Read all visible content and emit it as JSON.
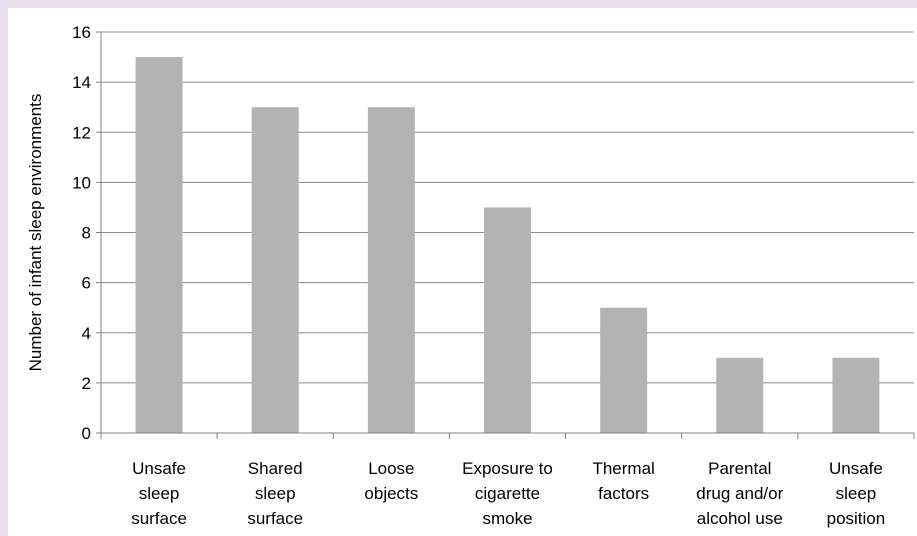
{
  "chart_data": {
    "type": "bar",
    "title": "",
    "xlabel": "",
    "ylabel": "Number of infant sleep environments",
    "ylim": [
      0,
      16
    ],
    "yticks": [
      0,
      2,
      4,
      6,
      8,
      10,
      12,
      14,
      16
    ],
    "grid": true,
    "categories": [
      [
        "Unsafe",
        "sleep",
        "surface"
      ],
      [
        "Shared",
        "sleep",
        "surface"
      ],
      [
        "Loose",
        "objects"
      ],
      [
        "Exposure to",
        "cigarette",
        "smoke"
      ],
      [
        "Thermal",
        "factors"
      ],
      [
        "Parental",
        "drug and/or",
        "alcohol use"
      ],
      [
        "Unsafe",
        "sleep",
        "position"
      ]
    ],
    "values": [
      15,
      13,
      13,
      9,
      5,
      3,
      3
    ],
    "colors": {
      "bar": "#b3b3b3",
      "grid": "#8c8c8c",
      "axis": "#808080",
      "background": "#e9e0ee"
    }
  }
}
